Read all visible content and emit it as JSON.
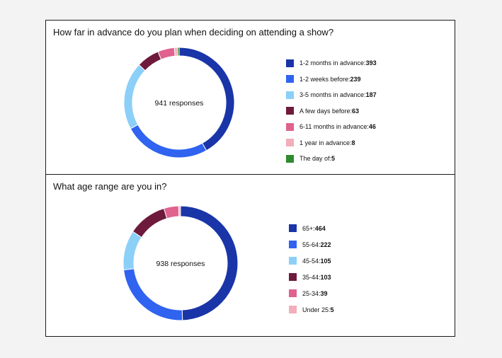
{
  "chart_data": [
    {
      "type": "pie",
      "title": "How far in advance do you plan when deciding on attending a show?",
      "center_label": "941 responses",
      "categories": [
        "1-2 months in advance",
        "1-2 weeks before",
        "3-5 months in advance",
        "A few days before",
        "6-11 months in advance",
        "1 year in advance",
        "The day of"
      ],
      "values": [
        393,
        239,
        187,
        63,
        46,
        8,
        5
      ],
      "colors": [
        "#1a35a8",
        "#2f63f0",
        "#8cd0f8",
        "#6e1a3c",
        "#e0628e",
        "#f2aebb",
        "#2f8a2f"
      ],
      "legend_position": "right"
    },
    {
      "type": "pie",
      "title": "What age range are you in?",
      "center_label": "938 responses",
      "categories": [
        "65+",
        "55-64",
        "45-54",
        "35-44",
        "25-34",
        "Under 25"
      ],
      "values": [
        464,
        222,
        105,
        103,
        39,
        5
      ],
      "colors": [
        "#1a35a8",
        "#2f63f0",
        "#8cd0f8",
        "#6e1a3c",
        "#e0628e",
        "#f2aebb"
      ],
      "legend_position": "right"
    }
  ]
}
